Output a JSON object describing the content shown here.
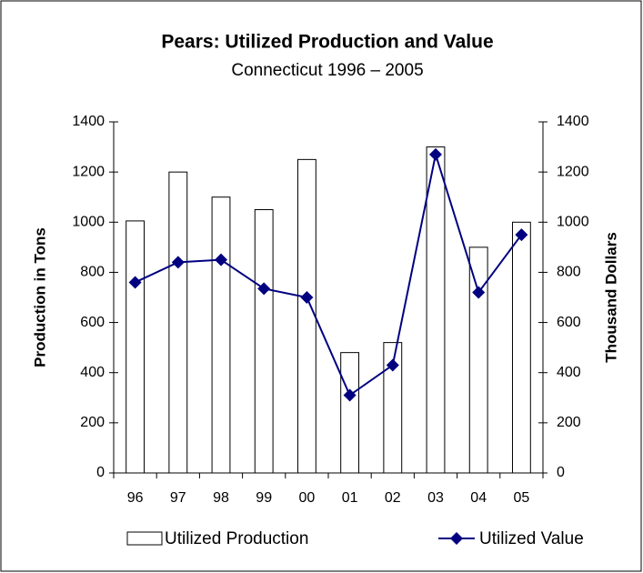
{
  "chart_data": {
    "type": "bar",
    "title": "Pears: Utilized Production and Value",
    "subtitle": "Connecticut 1996 – 2005",
    "y_label": "Production in Tons",
    "y2_label": "Thousand Dollars",
    "categories": [
      "96",
      "97",
      "98",
      "99",
      "00",
      "01",
      "02",
      "03",
      "04",
      "05"
    ],
    "series": [
      {
        "name": "Utilized Production",
        "type": "bar",
        "color": "#ffffff",
        "values": [
          1005,
          1200,
          1100,
          1050,
          1250,
          480,
          520,
          1300,
          900,
          1000
        ]
      },
      {
        "name": "Utilized Value",
        "type": "line",
        "axis": "y2",
        "color": "#000080",
        "values": [
          760,
          840,
          850,
          735,
          700,
          310,
          430,
          1270,
          720,
          950
        ]
      }
    ],
    "ylim": [
      0,
      1400
    ],
    "yticks": [
      0,
      200,
      400,
      600,
      800,
      1000,
      1200,
      1400
    ],
    "y2lim": [
      0,
      1400
    ],
    "y2ticks": [
      0,
      200,
      400,
      600,
      800,
      1000,
      1200,
      1400
    ],
    "legend": "bottom"
  }
}
